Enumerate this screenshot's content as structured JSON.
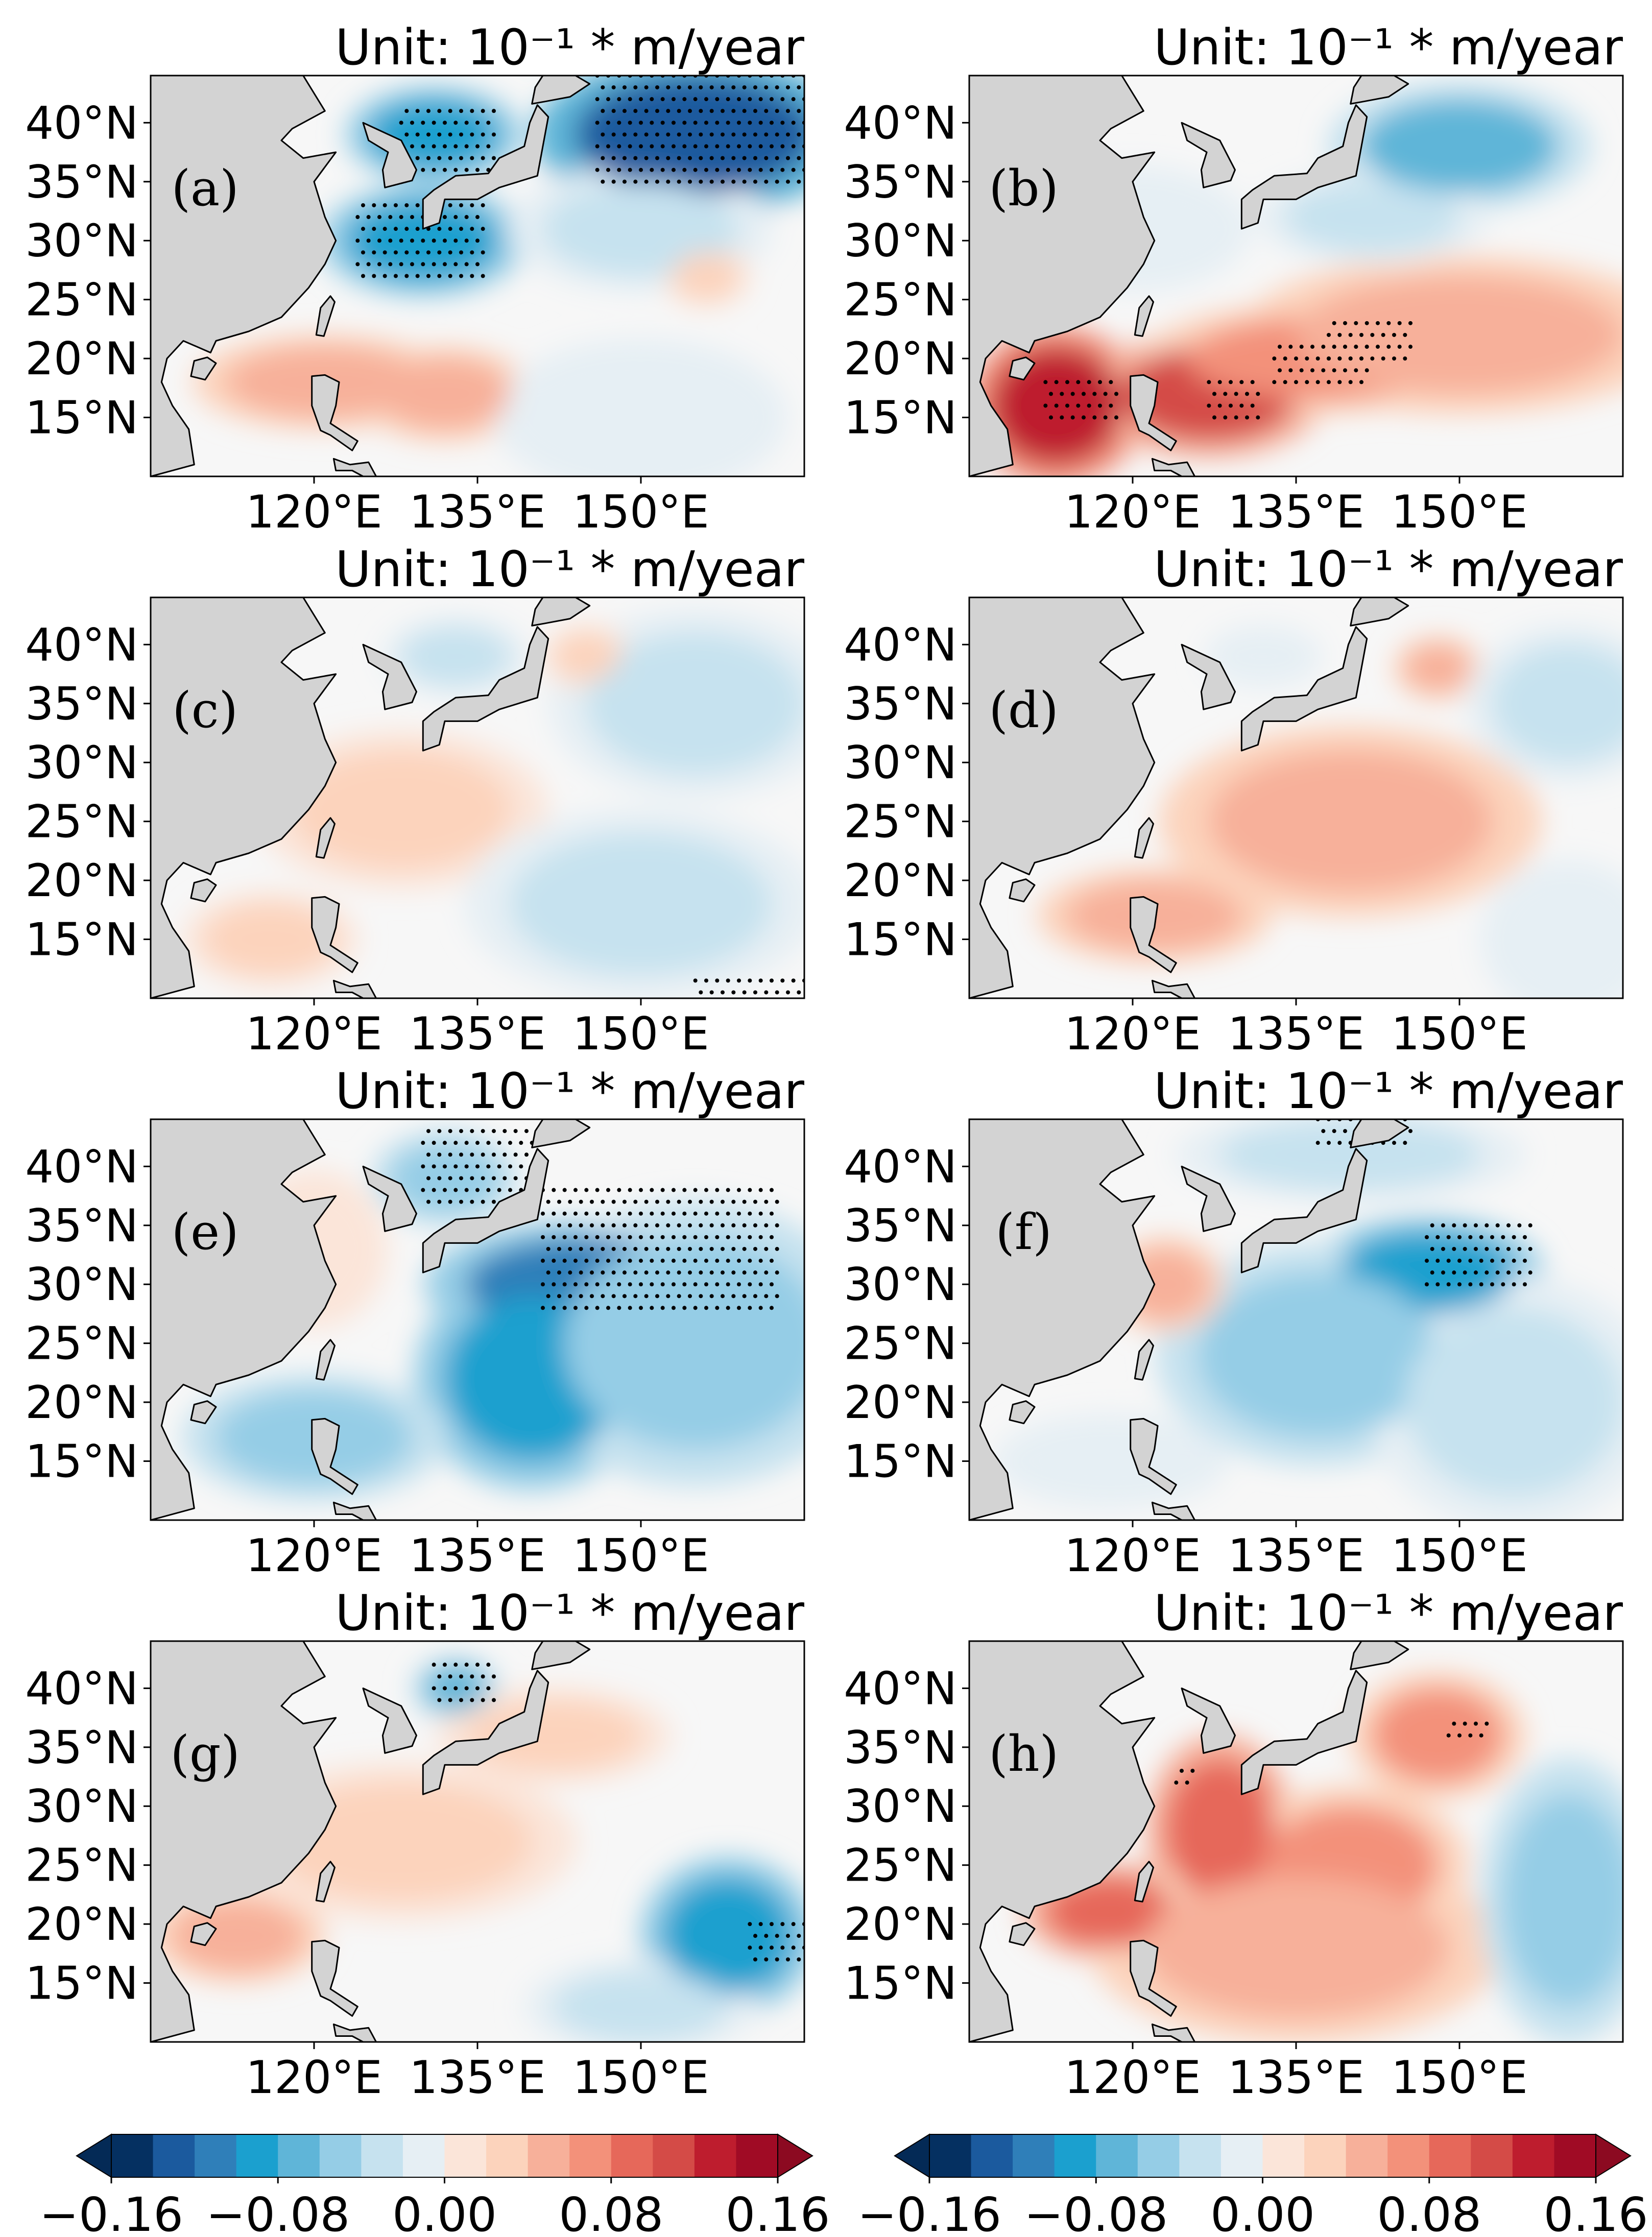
{
  "figure": {
    "unit_label": "Unit: 10⁻¹ * m/year",
    "land_color": "#d3d3d3",
    "ocean_neutral_color": "#f7f7f7"
  },
  "chart_data": {
    "type": "heatmap",
    "description_type": "multi-panel filled-contour maps",
    "x_ticks": [
      "120°E",
      "135°E",
      "150°E"
    ],
    "x_tick_values": [
      120,
      135,
      150
    ],
    "y_ticks": [
      "40°N",
      "35°N",
      "30°N",
      "25°N",
      "20°N",
      "15°N"
    ],
    "y_tick_values": [
      40,
      35,
      30,
      25,
      20,
      15
    ],
    "xlim": [
      105,
      165
    ],
    "ylim": [
      10,
      44
    ],
    "units": "10^-1 * m/year",
    "colorbar": {
      "ticks": [
        "−0.16",
        "−0.08",
        "0.00",
        "0.08",
        "0.16"
      ],
      "tick_values": [
        -0.16,
        -0.08,
        0.0,
        0.08,
        0.16
      ],
      "levels": [
        -0.16,
        -0.14,
        -0.12,
        -0.1,
        -0.08,
        -0.06,
        -0.04,
        -0.02,
        0.0,
        0.02,
        0.04,
        0.06,
        0.08,
        0.1,
        0.12,
        0.14,
        0.16
      ],
      "colors": [
        "#053061",
        "#1b5a9e",
        "#2f7fb9",
        "#1ba0cf",
        "#5fb5d8",
        "#95cde6",
        "#c6e2ef",
        "#e6eff4",
        "#fbe5d9",
        "#fcd3bc",
        "#f7b09a",
        "#f3917a",
        "#e6685a",
        "#d44b47",
        "#be1d2e",
        "#a00b25"
      ],
      "extend": "both",
      "extend_low_color": "#042a56",
      "extend_high_color": "#8c0a21"
    },
    "panels": [
      {
        "tag": "(a)",
        "features": [
          {
            "lon": 130,
            "lat": 30,
            "v": -0.1,
            "rx": 7,
            "ry": 3.5
          },
          {
            "lon": 131,
            "lat": 39,
            "v": -0.09,
            "rx": 6,
            "ry": 3
          },
          {
            "lon": 155,
            "lat": 39,
            "v": -0.13,
            "rx": 11,
            "ry": 5
          },
          {
            "lon": 150,
            "lat": 31,
            "v": -0.04,
            "rx": 9,
            "ry": 4
          },
          {
            "lon": 121,
            "lat": 18,
            "v": 0.05,
            "rx": 9,
            "ry": 3
          },
          {
            "lon": 132,
            "lat": 17,
            "v": 0.04,
            "rx": 6,
            "ry": 3
          },
          {
            "lon": 156,
            "lat": 27,
            "v": 0.02,
            "rx": 3,
            "ry": 2
          },
          {
            "lon": 150,
            "lat": 15,
            "v": -0.02,
            "rx": 10,
            "ry": 5
          }
        ]
      },
      {
        "tag": "(b)",
        "features": [
          {
            "lon": 113,
            "lat": 16,
            "v": 0.12,
            "rx": 6,
            "ry": 5
          },
          {
            "lon": 127,
            "lat": 17,
            "v": 0.11,
            "rx": 8,
            "ry": 4
          },
          {
            "lon": 137,
            "lat": 20,
            "v": 0.07,
            "rx": 12,
            "ry": 3.5
          },
          {
            "lon": 150,
            "lat": 22,
            "v": 0.04,
            "rx": 15,
            "ry": 5
          },
          {
            "lon": 150,
            "lat": 38,
            "v": -0.07,
            "rx": 9,
            "ry": 4
          },
          {
            "lon": 142,
            "lat": 32,
            "v": -0.04,
            "rx": 8,
            "ry": 3
          },
          {
            "lon": 120,
            "lat": 31,
            "v": -0.02,
            "rx": 8,
            "ry": 4
          }
        ]
      },
      {
        "tag": "(c)",
        "features": [
          {
            "lon": 128,
            "lat": 26,
            "v": 0.02,
            "rx": 10,
            "ry": 5
          },
          {
            "lon": 133,
            "lat": 39,
            "v": -0.04,
            "rx": 5,
            "ry": 2.5
          },
          {
            "lon": 155,
            "lat": 35,
            "v": -0.04,
            "rx": 10,
            "ry": 6
          },
          {
            "lon": 150,
            "lat": 18,
            "v": -0.03,
            "rx": 12,
            "ry": 6
          },
          {
            "lon": 145,
            "lat": 39,
            "v": 0.03,
            "rx": 3,
            "ry": 2
          },
          {
            "lon": 116,
            "lat": 15,
            "v": 0.02,
            "rx": 6,
            "ry": 3
          }
        ]
      },
      {
        "tag": "(d)",
        "features": [
          {
            "lon": 140,
            "lat": 25,
            "v": 0.04,
            "rx": 13,
            "ry": 6
          },
          {
            "lon": 148,
            "lat": 38,
            "v": 0.05,
            "rx": 3,
            "ry": 2
          },
          {
            "lon": 122,
            "lat": 17,
            "v": 0.04,
            "rx": 8,
            "ry": 3
          },
          {
            "lon": 160,
            "lat": 35,
            "v": -0.04,
            "rx": 7,
            "ry": 5
          },
          {
            "lon": 160,
            "lat": 15,
            "v": -0.02,
            "rx": 6,
            "ry": 5
          },
          {
            "lon": 132,
            "lat": 39,
            "v": -0.02,
            "rx": 4,
            "ry": 2
          }
        ]
      },
      {
        "tag": "(e)",
        "features": [
          {
            "lon": 145,
            "lat": 30,
            "v": -0.11,
            "rx": 11,
            "ry": 4
          },
          {
            "lon": 140,
            "lat": 22,
            "v": -0.09,
            "rx": 8,
            "ry": 7
          },
          {
            "lon": 132,
            "lat": 39,
            "v": -0.06,
            "rx": 5,
            "ry": 3
          },
          {
            "lon": 120,
            "lat": 17,
            "v": -0.06,
            "rx": 9,
            "ry": 4
          },
          {
            "lon": 155,
            "lat": 25,
            "v": -0.05,
            "rx": 12,
            "ry": 9
          },
          {
            "lon": 120,
            "lat": 33,
            "v": 0.01,
            "rx": 5,
            "ry": 5
          }
        ]
      },
      {
        "tag": "(f)",
        "features": [
          {
            "lon": 147,
            "lat": 31,
            "v": -0.09,
            "rx": 8,
            "ry": 3.5
          },
          {
            "lon": 137,
            "lat": 24,
            "v": -0.06,
            "rx": 11,
            "ry": 7
          },
          {
            "lon": 123,
            "lat": 30,
            "v": 0.04,
            "rx": 4,
            "ry": 3
          },
          {
            "lon": 155,
            "lat": 20,
            "v": -0.04,
            "rx": 10,
            "ry": 8
          },
          {
            "lon": 140,
            "lat": 41,
            "v": -0.03,
            "rx": 12,
            "ry": 3
          },
          {
            "lon": 118,
            "lat": 15,
            "v": -0.02,
            "rx": 8,
            "ry": 3
          }
        ]
      },
      {
        "tag": "(g)",
        "features": [
          {
            "lon": 158,
            "lat": 19,
            "v": -0.1,
            "rx": 6,
            "ry": 5
          },
          {
            "lon": 133,
            "lat": 40,
            "v": -0.08,
            "rx": 3,
            "ry": 2
          },
          {
            "lon": 113,
            "lat": 19,
            "v": 0.05,
            "rx": 6,
            "ry": 3
          },
          {
            "lon": 128,
            "lat": 27,
            "v": 0.03,
            "rx": 12,
            "ry": 5
          },
          {
            "lon": 142,
            "lat": 36,
            "v": 0.02,
            "rx": 8,
            "ry": 3
          },
          {
            "lon": 150,
            "lat": 13,
            "v": -0.03,
            "rx": 8,
            "ry": 3
          }
        ]
      },
      {
        "tag": "(h)",
        "features": [
          {
            "lon": 118,
            "lat": 21,
            "v": 0.09,
            "rx": 6,
            "ry": 3
          },
          {
            "lon": 128,
            "lat": 28,
            "v": 0.08,
            "rx": 5,
            "ry": 6
          },
          {
            "lon": 140,
            "lat": 25,
            "v": 0.07,
            "rx": 8,
            "ry": 5
          },
          {
            "lon": 148,
            "lat": 36,
            "v": 0.06,
            "rx": 6,
            "ry": 4
          },
          {
            "lon": 135,
            "lat": 18,
            "v": 0.04,
            "rx": 14,
            "ry": 6
          },
          {
            "lon": 160,
            "lat": 22,
            "v": -0.05,
            "rx": 6,
            "ry": 9
          }
        ]
      }
    ]
  }
}
